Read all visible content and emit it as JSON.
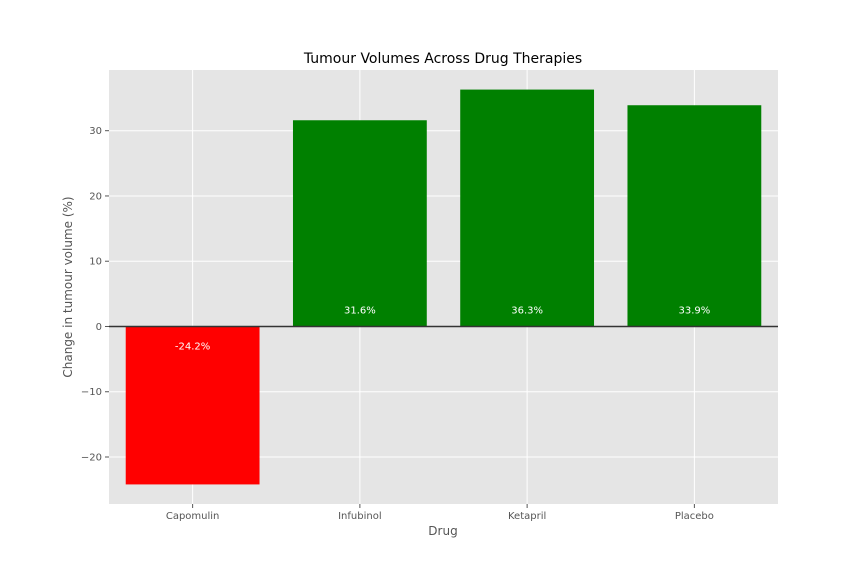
{
  "chart_data": {
    "type": "bar",
    "title": "Tumour Volumes Across Drug Therapies",
    "xlabel": "Drug",
    "ylabel": "Change in tumour volume (%)",
    "categories": [
      "Capomulin",
      "Infubinol",
      "Ketapril",
      "Placebo"
    ],
    "values": [
      -24.2,
      31.6,
      36.3,
      33.9
    ],
    "data_labels": [
      "-24.2%",
      "31.6%",
      "36.3%",
      "33.9%"
    ],
    "bar_colors": [
      "#ff0000",
      "#008000",
      "#008000",
      "#008000"
    ],
    "ylim": [
      -27.2,
      39.3
    ],
    "yticks": [
      -20,
      -10,
      0,
      10,
      20,
      30
    ],
    "ytick_labels": [
      "−20",
      "−10",
      "0",
      "10",
      "20",
      "30"
    ],
    "grid": true,
    "zero_line": true,
    "style": {
      "plot_background": "#e5e5e5",
      "grid_color": "#ffffff",
      "zero_line_color": "#333333"
    }
  }
}
